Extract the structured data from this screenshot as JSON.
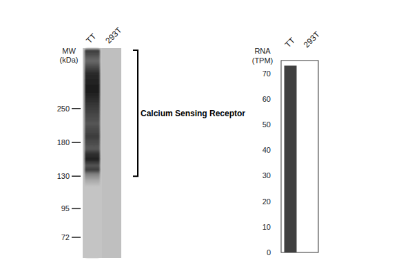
{
  "chart_data": {
    "type": "bar",
    "categories": [
      "TT",
      "293T"
    ],
    "values": [
      73,
      0
    ],
    "color": "#404040",
    "ylabel": [
      "RNA",
      "(TPM)"
    ],
    "ylim": [
      0,
      75
    ],
    "yticks": [
      0,
      10,
      20,
      30,
      40,
      50,
      60,
      70
    ]
  },
  "blot": {
    "lanes": [
      "TT",
      "293T"
    ],
    "mw_label": [
      "MW",
      "(kDa)"
    ],
    "markers": [
      250,
      180,
      130,
      95,
      72
    ],
    "ylim": [
      59,
      448
    ],
    "log": true,
    "target": "Calcium Sensing Receptor",
    "target_range": [
      130,
      448
    ]
  }
}
